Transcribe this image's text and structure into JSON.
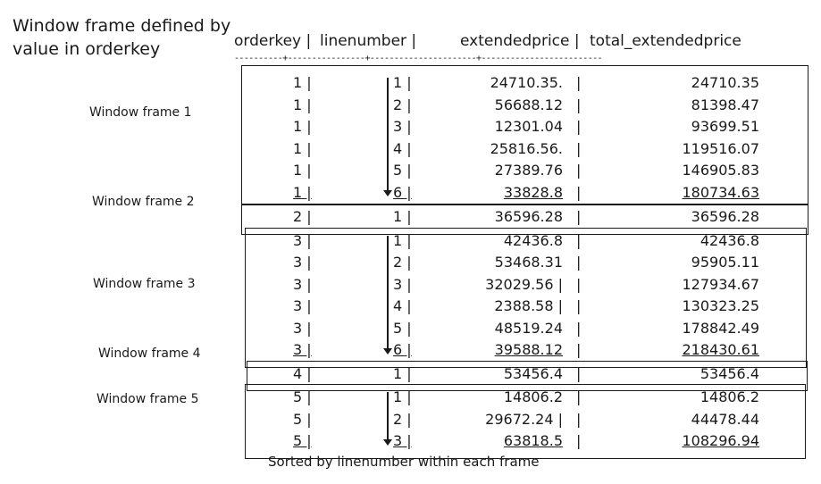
{
  "title": "Window frame defined by value in orderkey",
  "headers": {
    "orderkey": "orderkey |",
    "linenumber": "linenumber |",
    "extendedprice": "extendedprice |",
    "total": "total_extendedprice"
  },
  "separator": "----------+----------------+----------------------+-------------------------",
  "frames": [
    {
      "label": "Window frame 1",
      "rows": [
        {
          "orderkey": "1 |",
          "linenumber": "1 |",
          "extendedprice": "24710.35.",
          "total": "24710.35"
        },
        {
          "orderkey": "1 |",
          "linenumber": "2 |",
          "extendedprice": "56688.12",
          "total": "81398.47"
        },
        {
          "orderkey": "1 |",
          "linenumber": "3 |",
          "extendedprice": "12301.04",
          "total": "93699.51"
        },
        {
          "orderkey": "1 |",
          "linenumber": "4 |",
          "extendedprice": "25816.56.",
          "total": "119516.07"
        },
        {
          "orderkey": "1 |",
          "linenumber": "5 |",
          "extendedprice": "27389.76",
          "total": "146905.83"
        },
        {
          "orderkey": "1 |",
          "linenumber": "6 |",
          "extendedprice": "33828.8",
          "total": "180734.63"
        }
      ]
    },
    {
      "label": "Window frame 2",
      "rows": [
        {
          "orderkey": "2 |",
          "linenumber": "1 |",
          "extendedprice": "36596.28",
          "total": "36596.28"
        }
      ]
    },
    {
      "label": "Window frame 3",
      "rows": [
        {
          "orderkey": "3 |",
          "linenumber": "1 |",
          "extendedprice": "42436.8",
          "total": "42436.8"
        },
        {
          "orderkey": "3 |",
          "linenumber": "2 |",
          "extendedprice": "53468.31",
          "total": "95905.11"
        },
        {
          "orderkey": "3 |",
          "linenumber": "3 |",
          "extendedprice": "32029.56 |",
          "total": "127934.67"
        },
        {
          "orderkey": "3 |",
          "linenumber": "4 |",
          "extendedprice": "2388.58 |",
          "total": "130323.25"
        },
        {
          "orderkey": "3 |",
          "linenumber": "5 |",
          "extendedprice": "48519.24",
          "total": "178842.49"
        },
        {
          "orderkey": "3 |",
          "linenumber": "6 |",
          "extendedprice": "39588.12",
          "total": "218430.61"
        }
      ]
    },
    {
      "label": "Window frame 4",
      "rows": [
        {
          "orderkey": "4 |",
          "linenumber": "1 |",
          "extendedprice": "53456.4",
          "total": "53456.4"
        }
      ]
    },
    {
      "label": "Window frame 5",
      "rows": [
        {
          "orderkey": "5 |",
          "linenumber": "1 |",
          "extendedprice": "14806.2",
          "total": "14806.2"
        },
        {
          "orderkey": "5 |",
          "linenumber": "2 |",
          "extendedprice": "29672.24 |",
          "total": "44478.44"
        },
        {
          "orderkey": "5 |",
          "linenumber": "3 |",
          "extendedprice": "63818.5",
          "total": "108296.94"
        }
      ]
    }
  ],
  "middle_pipe": "|",
  "footer": "Sorted by linenumber within each frame"
}
